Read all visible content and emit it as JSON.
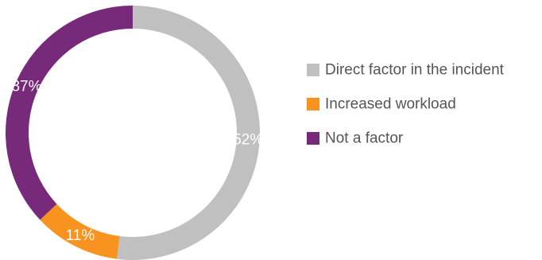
{
  "chart_data": {
    "type": "pie",
    "donut": true,
    "start_angle_deg": 0,
    "direction": "clockwise",
    "legend_position": "right",
    "series": [
      {
        "name": "Direct factor in the incident",
        "value": 52,
        "label": "52%",
        "color": "#c0c0c0"
      },
      {
        "name": "Increased workload",
        "value": 11,
        "label": "11%",
        "color": "#f7931e"
      },
      {
        "name": "Not a factor",
        "value": 37,
        "label": "37%",
        "color": "#772a7a"
      }
    ]
  }
}
